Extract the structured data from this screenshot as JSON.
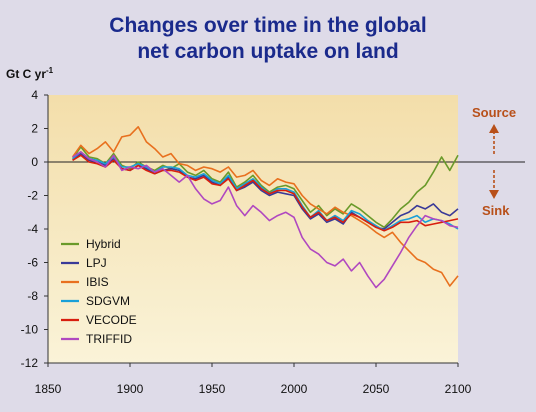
{
  "title_line1": "Changes over time in the global",
  "title_line2": "net carbon uptake on land",
  "colors": {
    "background": "#dedbe8",
    "plot_top": "#f3deaa",
    "plot_bottom": "#faf3d8",
    "title": "#1a2a8c",
    "arrow": "#b8501a"
  },
  "annotations": {
    "source_label": "Source",
    "sink_label": "Sink"
  },
  "chart_data": {
    "type": "line",
    "title": "Changes over time in the global net carbon uptake on land",
    "ylabel": "Gt C yr",
    "ylabel_superscript": "-1",
    "xlim": [
      1850,
      2100
    ],
    "ylim": [
      -12,
      4
    ],
    "xticks": [
      1850,
      1900,
      1950,
      2000,
      2050,
      2100
    ],
    "yticks": [
      4,
      2,
      0,
      -2,
      -4,
      -6,
      -8,
      -10,
      -12
    ],
    "legend_position": "left",
    "zero_line": true,
    "series": [
      {
        "name": "Hybrid",
        "color": "#6a9a2a",
        "x": [
          1865,
          1870,
          1875,
          1880,
          1885,
          1890,
          1895,
          1900,
          1905,
          1910,
          1915,
          1920,
          1925,
          1930,
          1935,
          1940,
          1945,
          1950,
          1955,
          1960,
          1965,
          1970,
          1975,
          1980,
          1985,
          1990,
          1995,
          2000,
          2005,
          2010,
          2015,
          2020,
          2025,
          2030,
          2035,
          2040,
          2045,
          2050,
          2055,
          2060,
          2065,
          2070,
          2075,
          2080,
          2085,
          2090,
          2095,
          2100
        ],
        "y": [
          0.2,
          0.9,
          0.3,
          0.2,
          -0.1,
          0.5,
          -0.2,
          -0.4,
          0.0,
          -0.3,
          -0.5,
          -0.2,
          -0.4,
          -0.1,
          -0.6,
          -0.8,
          -0.5,
          -1.0,
          -1.2,
          -0.6,
          -1.5,
          -1.2,
          -0.8,
          -1.4,
          -1.8,
          -1.5,
          -1.4,
          -1.6,
          -2.3,
          -3.0,
          -2.6,
          -3.2,
          -2.8,
          -3.1,
          -2.5,
          -2.8,
          -3.2,
          -3.6,
          -3.9,
          -3.4,
          -2.8,
          -2.4,
          -1.8,
          -1.4,
          -0.6,
          0.3,
          -0.5,
          0.4
        ]
      },
      {
        "name": "LPJ",
        "color": "#3a3a98",
        "x": [
          1865,
          1870,
          1875,
          1880,
          1885,
          1890,
          1895,
          1900,
          1905,
          1910,
          1915,
          1920,
          1925,
          1930,
          1935,
          1940,
          1945,
          1950,
          1955,
          1960,
          1965,
          1970,
          1975,
          1980,
          1985,
          1990,
          1995,
          2000,
          2005,
          2010,
          2015,
          2020,
          2025,
          2030,
          2035,
          2040,
          2045,
          2050,
          2055,
          2060,
          2065,
          2070,
          2075,
          2080,
          2085,
          2090,
          2095,
          2100
        ],
        "y": [
          0.1,
          0.5,
          0.1,
          0.0,
          -0.2,
          0.2,
          -0.4,
          -0.5,
          -0.2,
          -0.4,
          -0.7,
          -0.5,
          -0.4,
          -0.5,
          -0.9,
          -1.0,
          -0.8,
          -1.2,
          -1.4,
          -0.9,
          -1.7,
          -1.5,
          -1.2,
          -1.7,
          -2.0,
          -1.8,
          -1.9,
          -2.0,
          -2.8,
          -3.4,
          -3.1,
          -3.6,
          -3.4,
          -3.7,
          -3.0,
          -3.3,
          -3.6,
          -3.9,
          -4.0,
          -3.6,
          -3.2,
          -3.0,
          -2.6,
          -2.8,
          -2.5,
          -3.0,
          -3.2,
          -2.8
        ]
      },
      {
        "name": "IBIS",
        "color": "#e8701e",
        "x": [
          1865,
          1870,
          1875,
          1880,
          1885,
          1890,
          1895,
          1900,
          1905,
          1910,
          1915,
          1920,
          1925,
          1930,
          1935,
          1940,
          1945,
          1950,
          1955,
          1960,
          1965,
          1970,
          1975,
          1980,
          1985,
          1990,
          1995,
          2000,
          2005,
          2010,
          2015,
          2020,
          2025,
          2030,
          2035,
          2040,
          2045,
          2050,
          2055,
          2060,
          2065,
          2070,
          2075,
          2080,
          2085,
          2090,
          2095,
          2100
        ],
        "y": [
          0.3,
          1.0,
          0.5,
          0.8,
          1.2,
          0.6,
          1.5,
          1.6,
          2.1,
          1.2,
          0.8,
          0.3,
          0.5,
          -0.1,
          -0.2,
          -0.5,
          -0.3,
          -0.4,
          -0.6,
          -0.3,
          -0.9,
          -0.8,
          -0.5,
          -1.1,
          -1.4,
          -1.0,
          -1.2,
          -1.3,
          -2.0,
          -2.5,
          -2.8,
          -3.1,
          -2.7,
          -3.0,
          -3.2,
          -3.5,
          -3.8,
          -4.2,
          -4.5,
          -4.2,
          -4.8,
          -5.3,
          -5.8,
          -6.0,
          -6.4,
          -6.6,
          -7.4,
          -6.8
        ]
      },
      {
        "name": "SDGVM",
        "color": "#1aa0d8",
        "x": [
          1865,
          1870,
          1875,
          1880,
          1885,
          1890,
          1895,
          1900,
          1905,
          1910,
          1915,
          1920,
          1925,
          1930,
          1935,
          1940,
          1945,
          1950,
          1955,
          1960,
          1965,
          1970,
          1975,
          1980,
          1985,
          1990,
          1995,
          2000,
          2005,
          2010,
          2015,
          2020,
          2025,
          2030,
          2035,
          2040,
          2045,
          2050,
          2055,
          2060,
          2065,
          2070,
          2075,
          2080,
          2085,
          2090,
          2095,
          2100
        ],
        "y": [
          0.2,
          0.6,
          0.2,
          0.1,
          -0.1,
          0.3,
          -0.3,
          -0.3,
          -0.1,
          -0.3,
          -0.6,
          -0.3,
          -0.3,
          -0.4,
          -0.8,
          -0.9,
          -0.7,
          -1.1,
          -1.3,
          -0.8,
          -1.6,
          -1.3,
          -1.0,
          -1.5,
          -1.9,
          -1.6,
          -1.6,
          -1.8,
          -2.6,
          -3.3,
          -2.9,
          -3.5,
          -3.2,
          -3.5,
          -2.9,
          -3.1,
          -3.5,
          -3.8,
          -4.1,
          -3.8,
          -3.5,
          -3.4,
          -3.2,
          -3.6,
          -3.4,
          -3.5,
          -3.7,
          -4.0
        ]
      },
      {
        "name": "VECODE",
        "color": "#d81e0e",
        "x": [
          1865,
          1870,
          1875,
          1880,
          1885,
          1890,
          1895,
          1900,
          1905,
          1910,
          1915,
          1920,
          1925,
          1930,
          1935,
          1940,
          1945,
          1950,
          1955,
          1960,
          1965,
          1970,
          1975,
          1980,
          1985,
          1990,
          1995,
          2000,
          2005,
          2010,
          2015,
          2020,
          2025,
          2030,
          2035,
          2040,
          2045,
          2050,
          2055,
          2060,
          2065,
          2070,
          2075,
          2080,
          2085,
          2090,
          2095,
          2100
        ],
        "y": [
          0.1,
          0.4,
          0.0,
          -0.1,
          -0.3,
          0.1,
          -0.4,
          -0.5,
          -0.2,
          -0.5,
          -0.7,
          -0.5,
          -0.5,
          -0.6,
          -0.9,
          -1.1,
          -0.9,
          -1.3,
          -1.4,
          -1.0,
          -1.7,
          -1.4,
          -1.1,
          -1.6,
          -1.9,
          -1.7,
          -1.7,
          -1.9,
          -2.7,
          -3.3,
          -3.0,
          -3.5,
          -3.3,
          -3.6,
          -3.1,
          -3.3,
          -3.6,
          -3.9,
          -4.1,
          -3.9,
          -3.6,
          -3.6,
          -3.5,
          -3.8,
          -3.7,
          -3.6,
          -3.5,
          -3.4
        ]
      },
      {
        "name": "TRIFFID",
        "color": "#b048c0",
        "x": [
          1865,
          1870,
          1875,
          1880,
          1885,
          1890,
          1895,
          1900,
          1905,
          1910,
          1915,
          1920,
          1925,
          1930,
          1935,
          1940,
          1945,
          1950,
          1955,
          1960,
          1965,
          1970,
          1975,
          1980,
          1985,
          1990,
          1995,
          2000,
          2005,
          2010,
          2015,
          2020,
          2025,
          2030,
          2035,
          2040,
          2045,
          2050,
          2055,
          2060,
          2065,
          2070,
          2075,
          2080,
          2085,
          2090,
          2095,
          2100
        ],
        "y": [
          0.3,
          0.6,
          0.2,
          0.0,
          -0.3,
          0.4,
          -0.5,
          -0.3,
          -0.4,
          -0.2,
          -0.6,
          -0.4,
          -0.8,
          -1.2,
          -0.8,
          -1.6,
          -2.2,
          -2.5,
          -2.3,
          -1.5,
          -2.6,
          -3.2,
          -2.6,
          -3.0,
          -3.5,
          -3.2,
          -3.0,
          -3.3,
          -4.5,
          -5.2,
          -5.5,
          -6.0,
          -6.2,
          -5.8,
          -6.5,
          -6.0,
          -6.8,
          -7.5,
          -7.0,
          -6.2,
          -5.4,
          -4.5,
          -3.8,
          -3.2,
          -3.4,
          -3.5,
          -3.8,
          -3.9
        ]
      }
    ]
  }
}
